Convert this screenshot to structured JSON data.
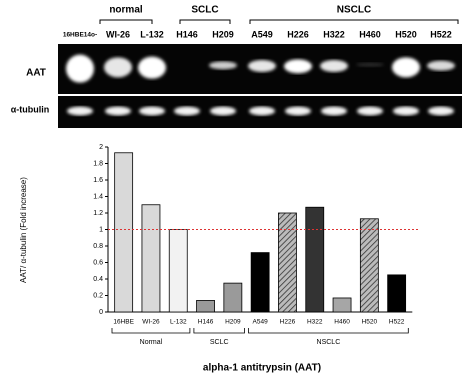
{
  "gel": {
    "groups": [
      "normal",
      "SCLC",
      "NSCLC"
    ],
    "lanes": [
      "16HBE14o-",
      "WI-26",
      "L-132",
      "H146",
      "H209",
      "A549",
      "H226",
      "H322",
      "H460",
      "H520",
      "H522"
    ],
    "rows": [
      "AAT",
      "α-tubulin"
    ]
  },
  "chart_data": {
    "type": "bar",
    "y_label": "AAT/ α-tubulin (Fold increase)",
    "x_label": "alpha-1 antitrypsin (AAT)",
    "categories": [
      "16HBE",
      "WI-26",
      "L-132",
      "H146",
      "H209",
      "A549",
      "H226",
      "H322",
      "H460",
      "H520",
      "H522"
    ],
    "values": [
      1.93,
      1.3,
      1.0,
      0.14,
      0.35,
      0.72,
      1.2,
      1.27,
      0.17,
      1.13,
      0.45
    ],
    "colors": [
      "#d9d9d9",
      "#d9d9d9",
      "#f2f2f2",
      "#9a9a9a",
      "#9a9a9a",
      "#000000",
      "#8c8c8c",
      "#333333",
      "#a6a6a6",
      "#8c8c8c",
      "#000000"
    ],
    "hatched": [
      false,
      false,
      false,
      false,
      false,
      false,
      true,
      false,
      false,
      true,
      false
    ],
    "groups": [
      "Normal",
      "SCLC",
      "NSCLC"
    ],
    "reference_line": 1,
    "ylim": [
      0,
      2
    ],
    "yticks": [
      0,
      0.2,
      0.4,
      0.6,
      0.8,
      1,
      1.2,
      1.4,
      1.6,
      1.8,
      2
    ]
  }
}
